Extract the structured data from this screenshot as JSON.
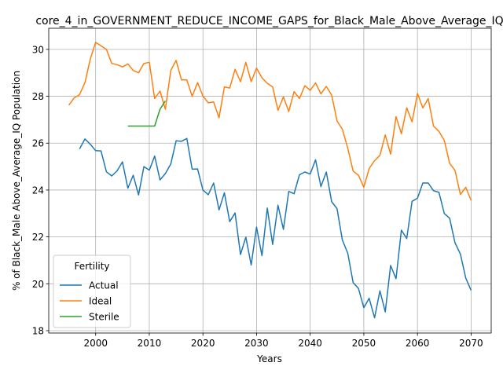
{
  "chart_data": {
    "type": "line",
    "title": "core_4_in_GOVERNMENT_REDUCE_INCOME_GAPS_for_Black_Male_Above_Average_IQ",
    "xlabel": "Years",
    "ylabel": "% of Black_Male Above_Average_IQ Population",
    "xlim": [
      1991.25,
      2073.75
    ],
    "ylim": [
      17.9,
      30.9
    ],
    "xticks": [
      2000,
      2010,
      2020,
      2030,
      2040,
      2050,
      2060,
      2070
    ],
    "yticks": [
      18,
      20,
      22,
      24,
      26,
      28,
      30
    ],
    "grid": true,
    "legend": {
      "title": "Fertility",
      "placement": "lower-left"
    },
    "series": [
      {
        "name": "Actual",
        "color": "#1f77b4",
        "x": [
          1997,
          1998,
          1999,
          2000,
          2001,
          2002,
          2003,
          2004,
          2005,
          2006,
          2007,
          2008,
          2009,
          2010,
          2011,
          2012,
          2013,
          2014,
          2015,
          2016,
          2017,
          2018,
          2019,
          2020,
          2021,
          2022,
          2023,
          2024,
          2025,
          2026,
          2027,
          2028,
          2029,
          2030,
          2031,
          2032,
          2033,
          2034,
          2035,
          2036,
          2037,
          2038,
          2039,
          2040,
          2041,
          2042,
          2043,
          2044,
          2045,
          2046,
          2047,
          2048,
          2049,
          2050,
          2051,
          2052,
          2053,
          2054,
          2055,
          2056,
          2057,
          2058,
          2059,
          2060,
          2061,
          2062,
          2063,
          2064,
          2065,
          2066,
          2067,
          2068,
          2069,
          2070
        ],
        "values": [
          25.75,
          26.18,
          25.95,
          25.68,
          25.67,
          24.78,
          24.6,
          24.82,
          25.2,
          24.08,
          24.63,
          23.79,
          25.0,
          24.85,
          25.45,
          24.43,
          24.7,
          25.11,
          26.1,
          26.08,
          26.2,
          24.89,
          24.9,
          24.0,
          23.8,
          24.3,
          23.15,
          23.88,
          22.65,
          23.02,
          21.25,
          21.99,
          20.8,
          22.42,
          21.2,
          23.23,
          21.68,
          23.35,
          22.32,
          23.94,
          23.84,
          24.65,
          24.77,
          24.68,
          25.29,
          24.15,
          24.77,
          23.5,
          23.21,
          21.87,
          21.3,
          20.05,
          19.8,
          18.98,
          19.38,
          18.55,
          19.7,
          18.8,
          20.78,
          20.22,
          22.29,
          21.93,
          23.52,
          23.65,
          24.3,
          24.3,
          23.97,
          23.9,
          23.0,
          22.8,
          21.75,
          21.27,
          20.25,
          19.72
        ]
      },
      {
        "name": "Ideal",
        "color": "#ff7f0e",
        "x": [
          1995,
          1996,
          1997,
          1998,
          1999,
          2000,
          2001,
          2002,
          2003,
          2004,
          2005,
          2006,
          2007,
          2008,
          2009,
          2010,
          2011,
          2012,
          2013,
          2014,
          2015,
          2016,
          2017,
          2018,
          2019,
          2020,
          2021,
          2022,
          2023,
          2024,
          2025,
          2026,
          2027,
          2028,
          2029,
          2030,
          2031,
          2032,
          2033,
          2034,
          2035,
          2036,
          2037,
          2038,
          2039,
          2040,
          2041,
          2042,
          2043,
          2044,
          2045,
          2046,
          2047,
          2048,
          2049,
          2050,
          2051,
          2052,
          2053,
          2054,
          2055,
          2056,
          2057,
          2058,
          2059,
          2060,
          2061,
          2062,
          2063,
          2064,
          2065,
          2066,
          2067,
          2068,
          2069,
          2070
        ],
        "values": [
          27.62,
          27.93,
          28.07,
          28.58,
          29.59,
          30.3,
          30.15,
          30.0,
          29.4,
          29.35,
          29.25,
          29.38,
          29.1,
          29.0,
          29.4,
          29.45,
          27.9,
          28.22,
          27.45,
          29.1,
          29.53,
          28.7,
          28.7,
          28.0,
          28.58,
          28.01,
          27.72,
          27.76,
          27.08,
          28.4,
          28.35,
          29.15,
          28.62,
          29.45,
          28.62,
          29.2,
          28.79,
          28.55,
          28.4,
          27.4,
          27.97,
          27.35,
          28.2,
          27.9,
          28.45,
          28.25,
          28.57,
          28.1,
          28.42,
          28.05,
          26.95,
          26.59,
          25.78,
          24.81,
          24.63,
          24.12,
          24.92,
          25.25,
          25.48,
          26.35,
          25.53,
          27.13,
          26.4,
          27.51,
          26.91,
          28.12,
          27.5,
          27.9,
          26.73,
          26.5,
          26.12,
          25.14,
          24.84,
          23.81,
          24.12,
          23.56
        ]
      },
      {
        "name": "Sterile",
        "color": "#2ca02c",
        "x": [
          2006,
          2007,
          2008,
          2009,
          2010,
          2011,
          2012,
          2013
        ],
        "values": [
          26.73,
          26.73,
          26.73,
          26.73,
          26.73,
          26.73,
          27.45,
          27.8
        ]
      }
    ]
  }
}
